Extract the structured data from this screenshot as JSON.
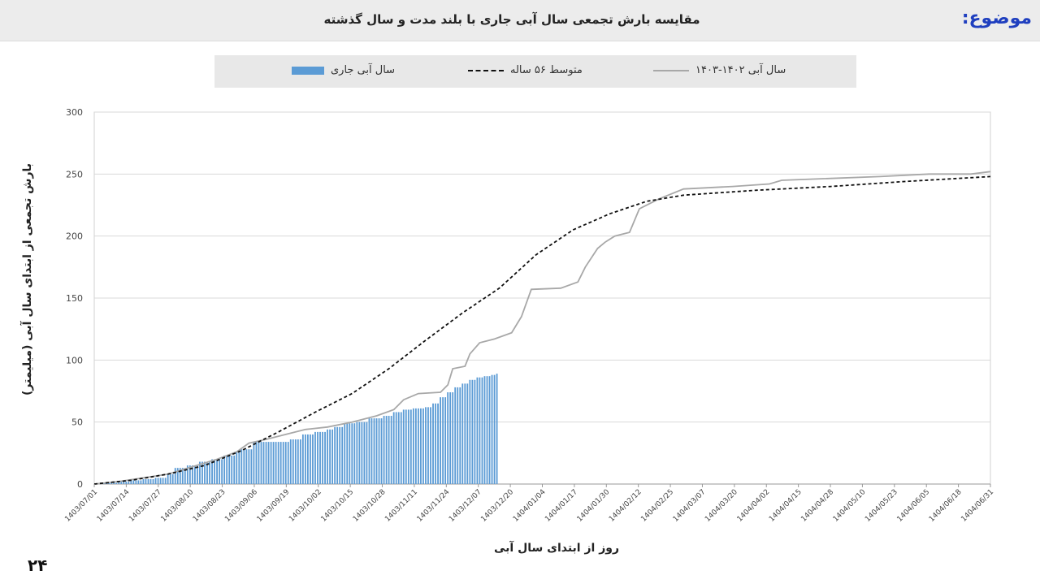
{
  "header": {
    "topic_label": "موضوع:",
    "title": "مقایسه بارش تجمعی سال آبی جاری با بلند مدت و سال گذشته"
  },
  "page_number": "۲۴",
  "chart_data": {
    "type": "bar",
    "title": "",
    "xlabel": "روز از ابتدای سال آبی",
    "ylabel": "بارش تجمعی از ابتدای سال آبی (میلیمتر)",
    "ylim": [
      0,
      300
    ],
    "yticks": [
      0,
      50,
      100,
      150,
      200,
      250,
      300
    ],
    "x_range_days": [
      0,
      365
    ],
    "grid": true,
    "legend_position": "top",
    "colors": {
      "current_year_bars": "#5b9bd5",
      "long_term_average": "#111111",
      "previous_year": "#a8a8a8"
    },
    "x_tick_labels": [
      "1403/07/01",
      "1403/07/14",
      "1403/07/27",
      "1403/08/10",
      "1403/08/23",
      "1403/09/06",
      "1403/09/19",
      "1403/10/02",
      "1403/10/15",
      "1403/10/28",
      "1403/11/11",
      "1403/11/24",
      "1403/12/07",
      "1403/12/20",
      "1404/01/04",
      "1404/01/17",
      "1404/01/30",
      "1404/02/12",
      "1404/02/25",
      "1404/03/07",
      "1404/03/20",
      "1404/04/02",
      "1404/04/15",
      "1404/04/28",
      "1404/05/10",
      "1404/05/23",
      "1404/06/05",
      "1404/06/18",
      "1404/06/31"
    ],
    "series": [
      {
        "name": "سال آبی جاری",
        "kind": "bar",
        "points": [
          [
            0,
            0.5
          ],
          [
            5,
            1
          ],
          [
            10,
            2
          ],
          [
            15,
            3
          ],
          [
            20,
            4
          ],
          [
            25,
            5
          ],
          [
            30,
            8
          ],
          [
            33,
            13
          ],
          [
            38,
            15
          ],
          [
            43,
            18
          ],
          [
            48,
            20
          ],
          [
            53,
            23
          ],
          [
            58,
            26
          ],
          [
            60,
            28
          ],
          [
            65,
            34
          ],
          [
            70,
            34
          ],
          [
            75,
            34
          ],
          [
            80,
            36
          ],
          [
            85,
            40
          ],
          [
            90,
            42
          ],
          [
            95,
            44
          ],
          [
            98,
            46
          ],
          [
            102,
            49
          ],
          [
            107,
            50
          ],
          [
            112,
            53
          ],
          [
            118,
            55
          ],
          [
            122,
            58
          ],
          [
            126,
            60
          ],
          [
            130,
            61
          ],
          [
            135,
            62
          ],
          [
            138,
            65
          ],
          [
            141,
            70
          ],
          [
            144,
            74
          ],
          [
            147,
            78
          ],
          [
            150,
            81
          ],
          [
            153,
            84
          ],
          [
            156,
            86
          ],
          [
            159,
            87
          ],
          [
            162,
            88
          ],
          [
            164,
            89
          ]
        ]
      },
      {
        "name": "متوسط ۵۶ ساله",
        "kind": "dashed-line",
        "points": [
          [
            0,
            0
          ],
          [
            15,
            3
          ],
          [
            30,
            8
          ],
          [
            45,
            15
          ],
          [
            60,
            27
          ],
          [
            75,
            42
          ],
          [
            90,
            58
          ],
          [
            105,
            73
          ],
          [
            120,
            93
          ],
          [
            135,
            116
          ],
          [
            150,
            138
          ],
          [
            165,
            158
          ],
          [
            180,
            185
          ],
          [
            195,
            205
          ],
          [
            210,
            218
          ],
          [
            225,
            228
          ],
          [
            240,
            233
          ],
          [
            270,
            237
          ],
          [
            300,
            240
          ],
          [
            330,
            244
          ],
          [
            365,
            248
          ]
        ]
      },
      {
        "name": "سال آبی ۱۴۰۲-۱۴۰۳",
        "kind": "solid-line",
        "points": [
          [
            0,
            0
          ],
          [
            10,
            2
          ],
          [
            20,
            5
          ],
          [
            30,
            8
          ],
          [
            40,
            14
          ],
          [
            50,
            20
          ],
          [
            58,
            26
          ],
          [
            63,
            33
          ],
          [
            70,
            36
          ],
          [
            78,
            40
          ],
          [
            86,
            44
          ],
          [
            95,
            46
          ],
          [
            105,
            50
          ],
          [
            115,
            55
          ],
          [
            122,
            60
          ],
          [
            126,
            68
          ],
          [
            132,
            73
          ],
          [
            141,
            74
          ],
          [
            144,
            80
          ],
          [
            146,
            93
          ],
          [
            151,
            95
          ],
          [
            153,
            105
          ],
          [
            157,
            114
          ],
          [
            163,
            117
          ],
          [
            170,
            122
          ],
          [
            174,
            135
          ],
          [
            178,
            157
          ],
          [
            190,
            158
          ],
          [
            197,
            163
          ],
          [
            200,
            175
          ],
          [
            205,
            190
          ],
          [
            208,
            195
          ],
          [
            212,
            200
          ],
          [
            218,
            203
          ],
          [
            222,
            222
          ],
          [
            230,
            230
          ],
          [
            240,
            238
          ],
          [
            260,
            240
          ],
          [
            275,
            242
          ],
          [
            280,
            245
          ],
          [
            320,
            248
          ],
          [
            340,
            250
          ],
          [
            357,
            250
          ],
          [
            365,
            252
          ]
        ]
      }
    ]
  }
}
